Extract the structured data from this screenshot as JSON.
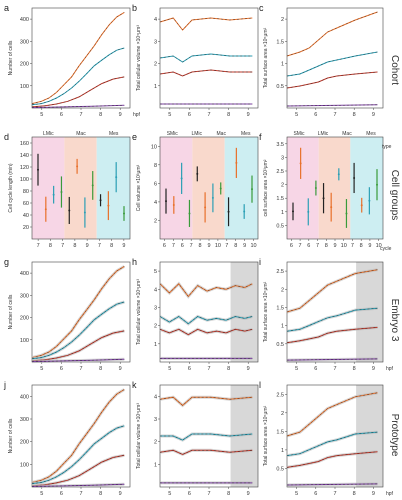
{
  "row_labels": [
    "Cohort",
    "Cell groups",
    "Embryo 3",
    "Prototype"
  ],
  "side_labels": {
    "type": "type",
    "cycle": "cycle",
    "hpf": "hpf"
  },
  "colors": {
    "orange": "#e8702a",
    "teal": "#2a9fb5",
    "green": "#3a9b3a",
    "black": "#222222",
    "red": "#c0392b",
    "purple": "#7b3fa0",
    "pink_band": "#f7d6e6",
    "salmon_band": "#f9d9cc",
    "cyan_band": "#cdeef2",
    "gray_band": "#d8d8d8"
  },
  "panels": [
    {
      "letter": "a",
      "ylabel": "Number of cells",
      "yticks": [
        "100",
        "200",
        "300",
        "400"
      ],
      "xticks": [
        "5",
        "6",
        "7",
        "8",
        "9"
      ],
      "xunit": "hpf"
    },
    {
      "letter": "b",
      "ylabel": "Total cellular volume ×10⁵μm³",
      "yticks": [
        "1",
        "2",
        "3",
        "4"
      ],
      "xticks": [
        "5",
        "6",
        "7",
        "8",
        "9"
      ]
    },
    {
      "letter": "c",
      "ylabel": "Total surface area ×10⁵μm²",
      "yticks": [
        "0.5",
        "1",
        "1.5",
        "2"
      ],
      "xticks": [
        "5",
        "6",
        "7",
        "8",
        "9"
      ]
    },
    {
      "letter": "d",
      "ylabel": "Cell cycle length (min)",
      "yticks": [
        "20",
        "40",
        "60",
        "80",
        "100",
        "120",
        "140",
        "160"
      ],
      "xticks": [
        "7",
        "8",
        "7",
        "8",
        "9",
        "7",
        "8",
        "9"
      ],
      "groups": [
        "LMic",
        "Mac",
        "Mes"
      ]
    },
    {
      "letter": "e",
      "ylabel": "Cell volume ×10³μm³",
      "yticks": [
        "2",
        "4",
        "6",
        "8",
        "10"
      ],
      "xticks": [
        "6",
        "7",
        "6",
        "7",
        "8",
        "9",
        "10",
        "7",
        "8",
        "9",
        "10"
      ],
      "groups": [
        "SMic",
        "LMic",
        "Mac",
        "Mes"
      ]
    },
    {
      "letter": "f",
      "ylabel": "cell surface area ×10³μm²",
      "yticks": [
        "0.5",
        "1",
        "1.5",
        "2",
        "2.5",
        "3",
        "3.5"
      ],
      "xticks": [
        "6",
        "7",
        "6",
        "7",
        "8",
        "9",
        "10",
        "7",
        "8",
        "9",
        "10"
      ],
      "groups": [
        "SMic",
        "LMic",
        "Mac",
        "Mes"
      ]
    },
    {
      "letter": "g",
      "ylabel": "Number of cells",
      "yticks": [
        "100",
        "200",
        "300",
        "400"
      ],
      "xticks": [
        "5",
        "6",
        "7",
        "8",
        "9"
      ]
    },
    {
      "letter": "h",
      "ylabel": "Total cellular volume ×10⁵μm³",
      "yticks": [
        "1",
        "2",
        "3",
        "4",
        "5"
      ],
      "xticks": [
        "5",
        "6",
        "7",
        "8",
        "9"
      ]
    },
    {
      "letter": "i",
      "ylabel": "Total surface area ×10⁵μm²",
      "yticks": [
        "0.5",
        "1",
        "1.5",
        "2",
        "2.5"
      ],
      "xticks": [
        "5",
        "6",
        "7",
        "8",
        "9"
      ],
      "xunit": "hpf"
    },
    {
      "letter": "j",
      "ylabel": "Number of cells",
      "yticks": [
        "100",
        "200",
        "300",
        "400"
      ],
      "xticks": [
        "5",
        "6",
        "7",
        "8",
        "9"
      ]
    },
    {
      "letter": "k",
      "ylabel": "Total cellular volume ×10⁵μm³",
      "yticks": [
        "1",
        "2",
        "3",
        "4"
      ],
      "xticks": [
        "5",
        "6",
        "7",
        "8",
        "9"
      ]
    },
    {
      "letter": "l",
      "ylabel": "Total surface area ×10⁵μm²",
      "yticks": [
        "0.5",
        "1",
        "1.5",
        "2",
        "2.5"
      ],
      "xticks": [
        "5",
        "6",
        "7",
        "8",
        "9"
      ],
      "xunit": "hpf"
    }
  ],
  "chart_data": [
    {
      "type": "line",
      "panel": "a",
      "x_range": [
        4.3,
        9.5
      ],
      "ylim": [
        0,
        450
      ],
      "series": [
        {
          "color": "orange",
          "x": [
            4.3,
            4.8,
            5.2,
            5.6,
            6.0,
            6.4,
            6.8,
            7.2,
            7.6,
            8.0,
            8.4,
            8.8,
            9.2
          ],
          "y": [
            20,
            30,
            45,
            70,
            105,
            140,
            190,
            235,
            280,
            330,
            375,
            410,
            430
          ]
        },
        {
          "color": "teal",
          "x": [
            4.3,
            4.8,
            5.2,
            5.6,
            6.0,
            6.4,
            6.8,
            7.2,
            7.6,
            8.0,
            8.4,
            8.8,
            9.2
          ],
          "y": [
            15,
            20,
            30,
            45,
            65,
            90,
            120,
            155,
            190,
            215,
            240,
            260,
            270
          ]
        },
        {
          "color": "red",
          "x": [
            4.3,
            5.0,
            5.6,
            6.2,
            6.8,
            7.4,
            8.0,
            8.6,
            9.2
          ],
          "y": [
            5,
            10,
            18,
            30,
            50,
            80,
            110,
            130,
            140
          ]
        },
        {
          "color": "purple",
          "x": [
            4.3,
            6.0,
            7.5,
            9.2
          ],
          "y": [
            2,
            5,
            8,
            12
          ]
        }
      ]
    },
    {
      "type": "line",
      "panel": "b",
      "x_range": [
        4.3,
        9.5
      ],
      "ylim": [
        0,
        5
      ],
      "series": [
        {
          "color": "orange",
          "x": [
            4.3,
            5.0,
            5.5,
            6.0,
            7.0,
            8.0,
            9.2
          ],
          "y": [
            4.3,
            4.5,
            3.9,
            4.4,
            4.5,
            4.4,
            4.5
          ]
        },
        {
          "color": "teal",
          "x": [
            4.3,
            5.0,
            5.5,
            6.0,
            7.0,
            8.0,
            9.2
          ],
          "y": [
            2.5,
            2.6,
            2.3,
            2.6,
            2.7,
            2.6,
            2.6
          ]
        },
        {
          "color": "red",
          "x": [
            4.3,
            5.0,
            5.5,
            6.0,
            7.0,
            8.0,
            9.2
          ],
          "y": [
            1.7,
            1.8,
            1.6,
            1.8,
            1.9,
            1.8,
            1.8
          ]
        },
        {
          "color": "purple",
          "x": [
            4.3,
            9.2
          ],
          "y": [
            0.2,
            0.2
          ]
        }
      ]
    },
    {
      "type": "line",
      "panel": "c",
      "x_range": [
        4.3,
        9.5
      ],
      "ylim": [
        0,
        2.5
      ],
      "series": [
        {
          "color": "orange",
          "x": [
            4.3,
            5.0,
            5.5,
            6.0,
            6.5,
            7.0,
            8.0,
            9.2
          ],
          "y": [
            1.3,
            1.4,
            1.5,
            1.7,
            1.9,
            2.0,
            2.2,
            2.4
          ]
        },
        {
          "color": "teal",
          "x": [
            4.3,
            5.0,
            5.5,
            6.0,
            6.5,
            7.0,
            8.0,
            9.2
          ],
          "y": [
            0.8,
            0.85,
            0.95,
            1.05,
            1.15,
            1.2,
            1.3,
            1.4
          ]
        },
        {
          "color": "red",
          "x": [
            4.3,
            5.0,
            5.5,
            6.0,
            6.5,
            7.0,
            8.0,
            9.2
          ],
          "y": [
            0.5,
            0.55,
            0.6,
            0.65,
            0.75,
            0.8,
            0.85,
            0.9
          ]
        },
        {
          "color": "purple",
          "x": [
            4.3,
            9.2
          ],
          "y": [
            0.05,
            0.08
          ]
        }
      ]
    },
    {
      "type": "line",
      "panel": "g",
      "x_range": [
        4.3,
        9.5
      ],
      "ylim": [
        0,
        450
      ],
      "series": [
        {
          "color": "orange",
          "x": [
            4.3,
            4.8,
            5.2,
            5.6,
            6.0,
            6.4,
            6.8,
            7.2,
            7.6,
            8.0,
            8.4,
            8.8,
            9.2
          ],
          "y": [
            20,
            30,
            45,
            70,
            105,
            140,
            190,
            235,
            280,
            330,
            375,
            410,
            430
          ]
        },
        {
          "color": "teal",
          "x": [
            4.3,
            4.8,
            5.2,
            5.6,
            6.0,
            6.4,
            6.8,
            7.2,
            7.6,
            8.0,
            8.4,
            8.8,
            9.2
          ],
          "y": [
            15,
            20,
            30,
            45,
            65,
            90,
            120,
            155,
            190,
            215,
            240,
            260,
            270
          ]
        },
        {
          "color": "red",
          "x": [
            4.3,
            5.0,
            5.6,
            6.2,
            6.8,
            7.4,
            8.0,
            8.6,
            9.2
          ],
          "y": [
            5,
            10,
            18,
            30,
            50,
            80,
            110,
            130,
            140
          ]
        },
        {
          "color": "purple",
          "x": [
            4.3,
            6.0,
            7.5,
            9.2
          ],
          "y": [
            2,
            5,
            8,
            12
          ]
        }
      ]
    },
    {
      "type": "line",
      "panel": "h",
      "x_range": [
        4.3,
        9.5
      ],
      "ylim": [
        0,
        5.5
      ],
      "series": [
        {
          "color": "orange",
          "x": [
            4.3,
            4.8,
            5.3,
            5.8,
            6.3,
            6.8,
            7.3,
            7.8,
            8.3,
            8.8,
            9.2
          ],
          "y": [
            4.3,
            3.8,
            4.3,
            3.6,
            4.2,
            3.9,
            4.1,
            4.0,
            4.2,
            4.1,
            4.3
          ]
        },
        {
          "color": "teal",
          "x": [
            4.3,
            4.8,
            5.3,
            5.8,
            6.3,
            6.8,
            7.3,
            7.8,
            8.3,
            8.8,
            9.2
          ],
          "y": [
            2.5,
            2.2,
            2.5,
            2.1,
            2.5,
            2.3,
            2.4,
            2.3,
            2.5,
            2.4,
            2.5
          ]
        },
        {
          "color": "red",
          "x": [
            4.3,
            4.8,
            5.3,
            5.8,
            6.3,
            6.8,
            7.3,
            7.8,
            8.3,
            8.8,
            9.2
          ],
          "y": [
            1.8,
            1.6,
            1.8,
            1.5,
            1.8,
            1.6,
            1.7,
            1.6,
            1.8,
            1.7,
            1.8
          ]
        },
        {
          "color": "purple",
          "x": [
            4.3,
            9.2
          ],
          "y": [
            0.2,
            0.2
          ]
        }
      ]
    },
    {
      "type": "line",
      "panel": "i",
      "x_range": [
        4.3,
        9.5
      ],
      "ylim": [
        0,
        2.6
      ],
      "series": [
        {
          "color": "orange",
          "x": [
            4.3,
            5.0,
            5.5,
            6.0,
            6.5,
            7.0,
            8.0,
            9.2
          ],
          "y": [
            1.3,
            1.4,
            1.6,
            1.8,
            2.0,
            2.1,
            2.3,
            2.4
          ]
        },
        {
          "color": "teal",
          "x": [
            4.3,
            5.0,
            5.5,
            6.0,
            6.5,
            7.0,
            8.0,
            9.2
          ],
          "y": [
            0.8,
            0.85,
            0.95,
            1.05,
            1.15,
            1.2,
            1.35,
            1.4
          ]
        },
        {
          "color": "red",
          "x": [
            4.3,
            5.0,
            5.5,
            6.0,
            6.5,
            7.0,
            8.0,
            9.2
          ],
          "y": [
            0.5,
            0.55,
            0.6,
            0.65,
            0.75,
            0.8,
            0.85,
            0.9
          ]
        },
        {
          "color": "purple",
          "x": [
            4.3,
            9.2
          ],
          "y": [
            0.05,
            0.08
          ]
        }
      ]
    },
    {
      "type": "line",
      "panel": "j",
      "x_range": [
        4.3,
        9.5
      ],
      "ylim": [
        0,
        450
      ],
      "series": [
        {
          "color": "orange",
          "x": [
            4.3,
            4.8,
            5.2,
            5.6,
            6.0,
            6.4,
            6.8,
            7.2,
            7.6,
            8.0,
            8.4,
            8.8,
            9.2
          ],
          "y": [
            20,
            30,
            45,
            70,
            105,
            140,
            190,
            235,
            280,
            330,
            375,
            410,
            430
          ]
        },
        {
          "color": "teal",
          "x": [
            4.3,
            4.8,
            5.2,
            5.6,
            6.0,
            6.4,
            6.8,
            7.2,
            7.6,
            8.0,
            8.4,
            8.8,
            9.2
          ],
          "y": [
            15,
            20,
            30,
            45,
            65,
            90,
            120,
            155,
            190,
            215,
            240,
            260,
            270
          ]
        },
        {
          "color": "red",
          "x": [
            4.3,
            5.0,
            5.6,
            6.2,
            6.8,
            7.4,
            8.0,
            8.6,
            9.2
          ],
          "y": [
            5,
            10,
            18,
            30,
            50,
            80,
            110,
            130,
            140
          ]
        },
        {
          "color": "purple",
          "x": [
            4.3,
            6.0,
            7.5,
            9.2
          ],
          "y": [
            2,
            5,
            8,
            12
          ]
        }
      ]
    },
    {
      "type": "line",
      "panel": "k",
      "x_range": [
        4.3,
        9.5
      ],
      "ylim": [
        0,
        5
      ],
      "series": [
        {
          "color": "orange",
          "x": [
            4.3,
            5.0,
            5.5,
            6.0,
            7.0,
            8.0,
            9.2
          ],
          "y": [
            4.3,
            4.4,
            4.0,
            4.4,
            4.4,
            4.3,
            4.4
          ]
        },
        {
          "color": "teal",
          "x": [
            4.3,
            5.0,
            5.5,
            6.0,
            7.0,
            8.0,
            9.2
          ],
          "y": [
            2.5,
            2.5,
            2.3,
            2.6,
            2.6,
            2.5,
            2.6
          ]
        },
        {
          "color": "red",
          "x": [
            4.3,
            5.0,
            5.5,
            6.0,
            7.0,
            8.0,
            9.2
          ],
          "y": [
            1.7,
            1.8,
            1.6,
            1.8,
            1.8,
            1.7,
            1.8
          ]
        },
        {
          "color": "purple",
          "x": [
            4.3,
            9.2
          ],
          "y": [
            0.2,
            0.2
          ]
        }
      ]
    },
    {
      "type": "line",
      "panel": "l",
      "x_range": [
        4.3,
        9.5
      ],
      "ylim": [
        0,
        2.6
      ],
      "series": [
        {
          "color": "orange",
          "x": [
            4.3,
            5.0,
            5.5,
            6.0,
            6.5,
            7.0,
            8.0,
            9.2
          ],
          "y": [
            1.3,
            1.4,
            1.6,
            1.8,
            2.0,
            2.1,
            2.3,
            2.4
          ]
        },
        {
          "color": "teal",
          "x": [
            4.3,
            5.0,
            5.5,
            6.0,
            6.5,
            7.0,
            8.0,
            9.2
          ],
          "y": [
            0.8,
            0.85,
            0.95,
            1.05,
            1.15,
            1.2,
            1.35,
            1.4
          ]
        },
        {
          "color": "red",
          "x": [
            4.3,
            5.0,
            5.5,
            6.0,
            6.5,
            7.0,
            8.0,
            9.2
          ],
          "y": [
            0.5,
            0.55,
            0.6,
            0.65,
            0.75,
            0.8,
            0.85,
            0.9
          ]
        },
        {
          "color": "purple",
          "x": [
            4.3,
            9.2
          ],
          "y": [
            0.05,
            0.08
          ]
        }
      ]
    }
  ]
}
